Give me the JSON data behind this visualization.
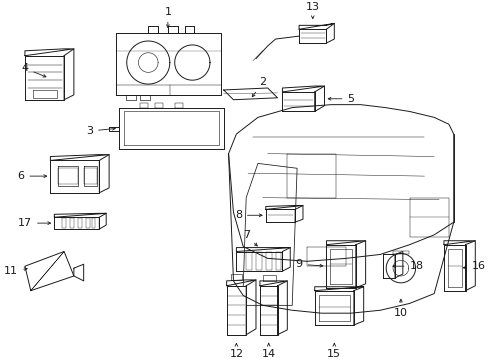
{
  "background_color": "#ffffff",
  "line_color": "#1a1a1a",
  "text_color": "#1a1a1a",
  "figsize": [
    4.89,
    3.6
  ],
  "dpi": 100
}
